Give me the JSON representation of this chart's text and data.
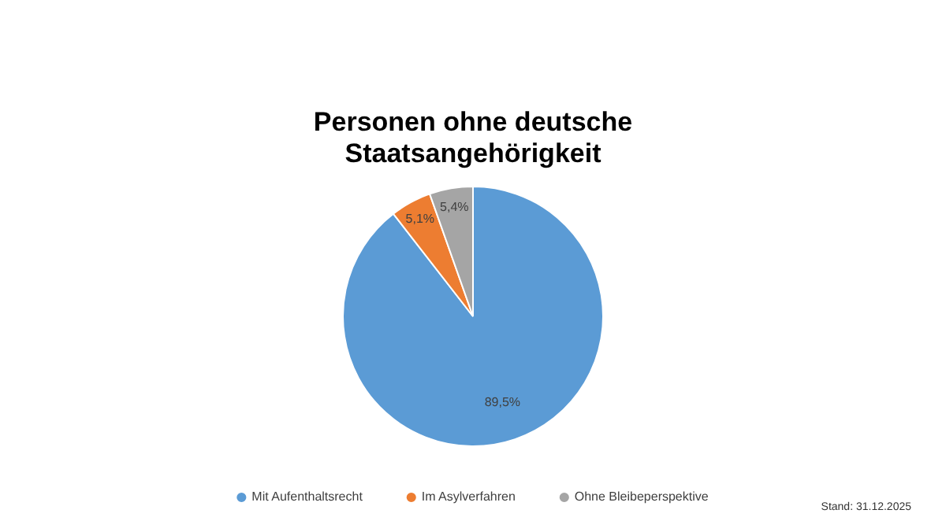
{
  "chart_data": {
    "type": "pie",
    "title": "Personen ohne deutsche Staatsangehörigkeit",
    "categories": [
      "Mit Aufenthaltsrecht",
      "Im Asylverfahren",
      "Ohne Bleibeperspektive"
    ],
    "values": [
      89.5,
      5.1,
      5.4
    ],
    "colors": [
      "#5b9bd5",
      "#ed7d31",
      "#a5a5a5"
    ],
    "value_labels": [
      "89,5%",
      "5,1%",
      "5,4%"
    ],
    "legend": "bottom",
    "annotations": [
      "Stand: 31.12.2025"
    ]
  }
}
